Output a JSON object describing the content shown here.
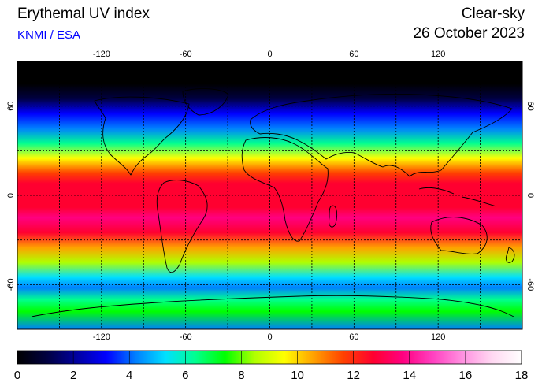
{
  "header": {
    "title": "Erythemal UV index",
    "source": "KNMI / ESA",
    "mode": "Clear-sky",
    "date": "26 October 2023"
  },
  "map": {
    "lon_ticks": [
      "-120",
      "-60",
      "0",
      "60",
      "120"
    ],
    "lat_ticks": [
      "60",
      "0",
      "-60"
    ],
    "lon_values": [
      -120,
      -60,
      0,
      60,
      120
    ],
    "lat_values": [
      60,
      0,
      -60
    ],
    "grid_lon_values": [
      -150,
      -120,
      -90,
      -60,
      -30,
      0,
      30,
      60,
      90,
      120,
      150
    ],
    "grid_lat_values": [
      60,
      30,
      0,
      -30,
      -60
    ],
    "lon_range": [
      -180,
      180
    ],
    "lat_range": [
      -90,
      90
    ],
    "grid": true
  },
  "colorbar": {
    "ticks": [
      "0",
      "2",
      "4",
      "6",
      "8",
      "10",
      "12",
      "14",
      "16",
      "18"
    ],
    "min": 0,
    "max": 18,
    "colors": [
      "#000000",
      "#000040",
      "#0000a0",
      "#0000ff",
      "#0080ff",
      "#00e0ff",
      "#00ff90",
      "#00ff00",
      "#b0ff00",
      "#ffff00",
      "#ffa000",
      "#ff4000",
      "#ff0030",
      "#ff0080",
      "#ff40c0",
      "#ff90e0",
      "#ffd8f2",
      "#ffffff"
    ]
  },
  "uv_profile": {
    "lat": [
      90,
      75,
      65,
      55,
      45,
      35,
      25,
      15,
      8,
      0,
      -8,
      -15,
      -25,
      -35,
      -45,
      -55,
      -62,
      -70,
      -78,
      -90
    ],
    "uv": [
      0,
      0.5,
      1.5,
      2.8,
      4.2,
      6.5,
      9,
      11.5,
      12.8,
      13,
      13.2,
      13.5,
      12.5,
      10.5,
      8,
      5.5,
      4.5,
      6,
      7,
      4
    ]
  }
}
